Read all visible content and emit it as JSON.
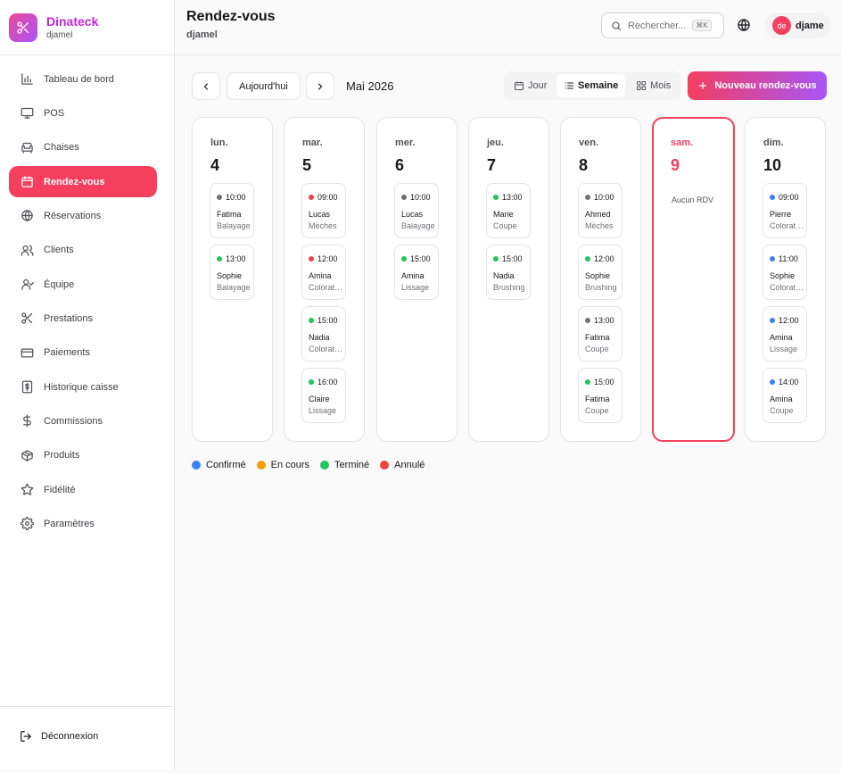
{
  "brand": {
    "name": "Dinateck",
    "sub": "djamel"
  },
  "sidebar": {
    "items": [
      {
        "label": "Tableau de bord",
        "icon": "bar-chart-icon"
      },
      {
        "label": "POS",
        "icon": "monitor-icon"
      },
      {
        "label": "Chaises",
        "icon": "armchair-icon"
      },
      {
        "label": "Rendez-vous",
        "icon": "calendar-icon"
      },
      {
        "label": "Réservations",
        "icon": "globe-icon"
      },
      {
        "label": "Clients",
        "icon": "users-icon"
      },
      {
        "label": "Équipe",
        "icon": "team-icon"
      },
      {
        "label": "Prestations",
        "icon": "scissors-icon"
      },
      {
        "label": "Paiements",
        "icon": "credit-card-icon"
      },
      {
        "label": "Historique caisse",
        "icon": "receipt-icon"
      },
      {
        "label": "Commissions",
        "icon": "dollar-icon"
      },
      {
        "label": "Produits",
        "icon": "package-icon"
      },
      {
        "label": "Fidélité",
        "icon": "star-icon"
      },
      {
        "label": "Paramètres",
        "icon": "settings-icon"
      }
    ],
    "logout": "Déconnexion"
  },
  "header": {
    "title": "Rendez-vous",
    "subtitle": "djamel",
    "search_placeholder": "Rechercher...",
    "search_kbd": "⌘K",
    "user_initials": "de",
    "user_name": "djame"
  },
  "toolbar": {
    "today": "Aujourd'hui",
    "month": "Mai 2026",
    "views": [
      "Jour",
      "Semaine",
      "Mois"
    ],
    "active_view": "Semaine",
    "new_label": "Nouveau rendez-vous"
  },
  "status_colors": {
    "confirme": "#3b82f6",
    "encours": "#f59e0b",
    "termine": "#22c55e",
    "annule": "#ef4444",
    "pending": "#71717a"
  },
  "days": [
    {
      "name": "lun.",
      "num": "4",
      "appointments": [
        {
          "time": "10:00",
          "client": "Fatima",
          "service": "Balayage",
          "status": "pending"
        },
        {
          "time": "13:00",
          "client": "Sophie",
          "service": "Balayage",
          "status": "termine"
        }
      ]
    },
    {
      "name": "mar.",
      "num": "5",
      "appointments": [
        {
          "time": "09:00",
          "client": "Lucas",
          "service": "Mèches",
          "status": "annule"
        },
        {
          "time": "12:00",
          "client": "Amina",
          "service": "Coloration",
          "status": "annule"
        },
        {
          "time": "15:00",
          "client": "Nadia",
          "service": "Coloration",
          "status": "termine"
        },
        {
          "time": "16:00",
          "client": "Claire",
          "service": "Lissage",
          "status": "termine"
        }
      ]
    },
    {
      "name": "mer.",
      "num": "6",
      "appointments": [
        {
          "time": "10:00",
          "client": "Lucas",
          "service": "Balayage",
          "status": "pending"
        },
        {
          "time": "15:00",
          "client": "Amina",
          "service": "Lissage",
          "status": "termine"
        }
      ]
    },
    {
      "name": "jeu.",
      "num": "7",
      "appointments": [
        {
          "time": "13:00",
          "client": "Marie",
          "service": "Coupe",
          "status": "termine"
        },
        {
          "time": "15:00",
          "client": "Nadia",
          "service": "Brushing",
          "status": "termine"
        }
      ]
    },
    {
      "name": "ven.",
      "num": "8",
      "appointments": [
        {
          "time": "10:00",
          "client": "Ahmed",
          "service": "Mèches",
          "status": "pending"
        },
        {
          "time": "12:00",
          "client": "Sophie",
          "service": "Brushing",
          "status": "termine"
        },
        {
          "time": "13:00",
          "client": "Fatima",
          "service": "Coupe",
          "status": "pending"
        },
        {
          "time": "15:00",
          "client": "Fatima",
          "service": "Coupe",
          "status": "termine"
        }
      ]
    },
    {
      "name": "sam.",
      "num": "9",
      "today": true,
      "empty": "Aucun RDV",
      "appointments": []
    },
    {
      "name": "dim.",
      "num": "10",
      "appointments": [
        {
          "time": "09:00",
          "client": "Pierre",
          "service": "Coloration",
          "status": "confirme"
        },
        {
          "time": "11:00",
          "client": "Sophie",
          "service": "Coloration",
          "status": "confirme"
        },
        {
          "time": "12:00",
          "client": "Amina",
          "service": "Lissage",
          "status": "confirme"
        },
        {
          "time": "14:00",
          "client": "Amina",
          "service": "Coupe",
          "status": "confirme"
        }
      ]
    }
  ],
  "legend": [
    {
      "label": "Confirmé",
      "status": "confirme"
    },
    {
      "label": "En cours",
      "status": "encours"
    },
    {
      "label": "Terminé",
      "status": "termine"
    },
    {
      "label": "Annulé",
      "status": "annule"
    }
  ]
}
